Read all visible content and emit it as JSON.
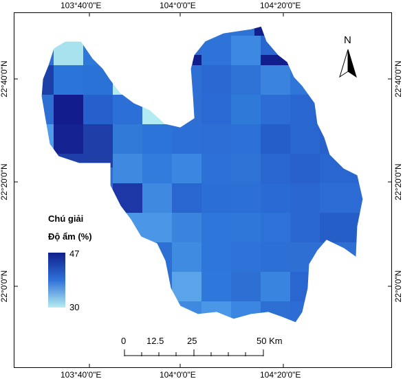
{
  "map": {
    "coords_top": [
      "103°40'0\"E",
      "104°0'0\"E",
      "104°20'0\"E"
    ],
    "coords_bottom": [
      "103°40'0\"E",
      "104°0'0\"E",
      "104°20'0\"E"
    ],
    "coords_left": [
      "22°40'0\"N",
      "22°20'0\"N",
      "22°0'0\"N"
    ],
    "coords_right": [
      "22°40'0\"N",
      "22°20'0\"N",
      "22°0'0\"N"
    ],
    "north_label": "N"
  },
  "legend": {
    "title": "Chú giải",
    "subtitle": "Độ ẩm (%)",
    "max_value": "47",
    "min_value": "30",
    "color_high": "#101f8c",
    "color_mid": "#2f72d8",
    "color_low": "#b6ecf0"
  },
  "scale": {
    "labels": [
      "0",
      "12.5",
      "25",
      "50 Km"
    ]
  }
}
